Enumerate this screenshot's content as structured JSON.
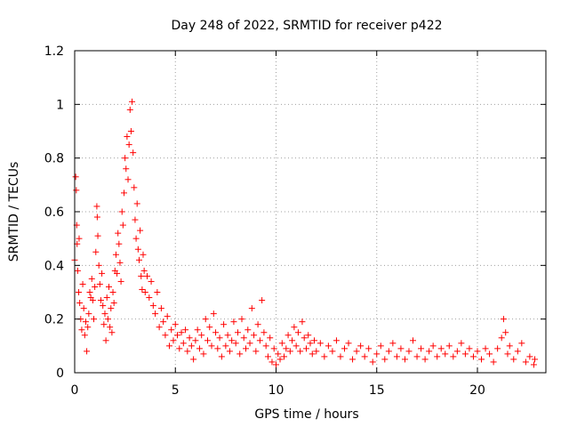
{
  "chart_data": {
    "type": "scatter",
    "title": "Day 248 of 2022, SRMTID for receiver p422",
    "xlabel": "GPS time / hours",
    "ylabel": "SRMTID / TECUs",
    "xlim": [
      0,
      23.4
    ],
    "ylim": [
      0,
      1.2
    ],
    "x_ticks": [
      0,
      5,
      10,
      15,
      20
    ],
    "x_tick_labels": [
      "0",
      "5",
      "10",
      "15",
      "20"
    ],
    "y_ticks": [
      0,
      0.2,
      0.4,
      0.6,
      0.8,
      1.0,
      1.2
    ],
    "y_tick_labels": [
      "0",
      "0.2",
      "0.4",
      "0.6",
      "0.8",
      "1",
      "1.2"
    ],
    "grid": true,
    "marker": "plus",
    "series": [
      {
        "name": "p422",
        "color": "#ff0000",
        "points": [
          [
            0.0,
            0.42
          ],
          [
            0.05,
            0.73
          ],
          [
            0.08,
            0.68
          ],
          [
            0.1,
            0.55
          ],
          [
            0.12,
            0.48
          ],
          [
            0.15,
            0.38
          ],
          [
            0.2,
            0.3
          ],
          [
            0.22,
            0.5
          ],
          [
            0.25,
            0.26
          ],
          [
            0.3,
            0.2
          ],
          [
            0.35,
            0.16
          ],
          [
            0.4,
            0.33
          ],
          [
            0.45,
            0.24
          ],
          [
            0.5,
            0.14
          ],
          [
            0.55,
            0.19
          ],
          [
            0.6,
            0.08
          ],
          [
            0.65,
            0.17
          ],
          [
            0.7,
            0.22
          ],
          [
            0.75,
            0.3
          ],
          [
            0.8,
            0.28
          ],
          [
            0.85,
            0.35
          ],
          [
            0.9,
            0.27
          ],
          [
            0.95,
            0.2
          ],
          [
            1.0,
            0.32
          ],
          [
            1.05,
            0.45
          ],
          [
            1.1,
            0.62
          ],
          [
            1.12,
            0.58
          ],
          [
            1.15,
            0.51
          ],
          [
            1.2,
            0.4
          ],
          [
            1.25,
            0.33
          ],
          [
            1.3,
            0.27
          ],
          [
            1.35,
            0.37
          ],
          [
            1.4,
            0.25
          ],
          [
            1.45,
            0.18
          ],
          [
            1.5,
            0.22
          ],
          [
            1.55,
            0.12
          ],
          [
            1.6,
            0.28
          ],
          [
            1.65,
            0.2
          ],
          [
            1.7,
            0.32
          ],
          [
            1.75,
            0.17
          ],
          [
            1.8,
            0.24
          ],
          [
            1.85,
            0.15
          ],
          [
            1.9,
            0.3
          ],
          [
            1.95,
            0.26
          ],
          [
            2.0,
            0.38
          ],
          [
            2.05,
            0.44
          ],
          [
            2.1,
            0.37
          ],
          [
            2.15,
            0.52
          ],
          [
            2.2,
            0.48
          ],
          [
            2.25,
            0.41
          ],
          [
            2.3,
            0.34
          ],
          [
            2.35,
            0.6
          ],
          [
            2.4,
            0.55
          ],
          [
            2.45,
            0.67
          ],
          [
            2.5,
            0.8
          ],
          [
            2.55,
            0.76
          ],
          [
            2.6,
            0.88
          ],
          [
            2.65,
            0.72
          ],
          [
            2.7,
            0.85
          ],
          [
            2.75,
            0.98
          ],
          [
            2.8,
            0.9
          ],
          [
            2.85,
            1.01
          ],
          [
            2.9,
            0.82
          ],
          [
            2.95,
            0.69
          ],
          [
            3.0,
            0.57
          ],
          [
            3.05,
            0.5
          ],
          [
            3.1,
            0.63
          ],
          [
            3.15,
            0.46
          ],
          [
            3.2,
            0.42
          ],
          [
            3.25,
            0.53
          ],
          [
            3.3,
            0.36
          ],
          [
            3.35,
            0.31
          ],
          [
            3.4,
            0.44
          ],
          [
            3.45,
            0.38
          ],
          [
            3.5,
            0.3
          ],
          [
            3.6,
            0.36
          ],
          [
            3.7,
            0.28
          ],
          [
            3.8,
            0.34
          ],
          [
            3.9,
            0.25
          ],
          [
            4.0,
            0.22
          ],
          [
            4.1,
            0.3
          ],
          [
            4.2,
            0.17
          ],
          [
            4.3,
            0.24
          ],
          [
            4.4,
            0.19
          ],
          [
            4.5,
            0.14
          ],
          [
            4.6,
            0.21
          ],
          [
            4.7,
            0.1
          ],
          [
            4.8,
            0.16
          ],
          [
            4.9,
            0.12
          ],
          [
            5.0,
            0.18
          ],
          [
            5.1,
            0.14
          ],
          [
            5.2,
            0.09
          ],
          [
            5.3,
            0.15
          ],
          [
            5.4,
            0.11
          ],
          [
            5.5,
            0.16
          ],
          [
            5.6,
            0.08
          ],
          [
            5.7,
            0.13
          ],
          [
            5.8,
            0.1
          ],
          [
            5.9,
            0.05
          ],
          [
            6.0,
            0.12
          ],
          [
            6.1,
            0.16
          ],
          [
            6.2,
            0.09
          ],
          [
            6.3,
            0.14
          ],
          [
            6.4,
            0.07
          ],
          [
            6.5,
            0.2
          ],
          [
            6.6,
            0.12
          ],
          [
            6.7,
            0.17
          ],
          [
            6.8,
            0.1
          ],
          [
            6.9,
            0.22
          ],
          [
            7.0,
            0.15
          ],
          [
            7.1,
            0.09
          ],
          [
            7.2,
            0.13
          ],
          [
            7.3,
            0.06
          ],
          [
            7.4,
            0.18
          ],
          [
            7.5,
            0.1
          ],
          [
            7.6,
            0.14
          ],
          [
            7.7,
            0.08
          ],
          [
            7.8,
            0.12
          ],
          [
            7.9,
            0.19
          ],
          [
            8.0,
            0.11
          ],
          [
            8.1,
            0.15
          ],
          [
            8.2,
            0.07
          ],
          [
            8.3,
            0.2
          ],
          [
            8.4,
            0.13
          ],
          [
            8.5,
            0.09
          ],
          [
            8.6,
            0.16
          ],
          [
            8.7,
            0.11
          ],
          [
            8.8,
            0.24
          ],
          [
            8.9,
            0.14
          ],
          [
            9.0,
            0.08
          ],
          [
            9.1,
            0.18
          ],
          [
            9.2,
            0.12
          ],
          [
            9.3,
            0.27
          ],
          [
            9.4,
            0.15
          ],
          [
            9.5,
            0.1
          ],
          [
            9.6,
            0.06
          ],
          [
            9.7,
            0.13
          ],
          [
            9.8,
            0.04
          ],
          [
            9.9,
            0.09
          ],
          [
            10.0,
            0.03
          ],
          [
            10.1,
            0.07
          ],
          [
            10.2,
            0.05
          ],
          [
            10.3,
            0.11
          ],
          [
            10.4,
            0.06
          ],
          [
            10.5,
            0.09
          ],
          [
            10.6,
            0.14
          ],
          [
            10.7,
            0.08
          ],
          [
            10.8,
            0.12
          ],
          [
            10.9,
            0.17
          ],
          [
            11.0,
            0.1
          ],
          [
            11.1,
            0.15
          ],
          [
            11.2,
            0.08
          ],
          [
            11.3,
            0.19
          ],
          [
            11.4,
            0.13
          ],
          [
            11.5,
            0.09
          ],
          [
            11.6,
            0.14
          ],
          [
            11.7,
            0.11
          ],
          [
            11.8,
            0.07
          ],
          [
            11.9,
            0.12
          ],
          [
            12.0,
            0.08
          ],
          [
            12.2,
            0.11
          ],
          [
            12.4,
            0.06
          ],
          [
            12.6,
            0.1
          ],
          [
            12.8,
            0.08
          ],
          [
            13.0,
            0.12
          ],
          [
            13.2,
            0.06
          ],
          [
            13.4,
            0.09
          ],
          [
            13.6,
            0.11
          ],
          [
            13.8,
            0.05
          ],
          [
            14.0,
            0.08
          ],
          [
            14.2,
            0.1
          ],
          [
            14.4,
            0.06
          ],
          [
            14.6,
            0.09
          ],
          [
            14.8,
            0.04
          ],
          [
            15.0,
            0.07
          ],
          [
            15.2,
            0.1
          ],
          [
            15.4,
            0.05
          ],
          [
            15.6,
            0.08
          ],
          [
            15.8,
            0.11
          ],
          [
            16.0,
            0.06
          ],
          [
            16.2,
            0.09
          ],
          [
            16.4,
            0.05
          ],
          [
            16.6,
            0.08
          ],
          [
            16.8,
            0.12
          ],
          [
            17.0,
            0.06
          ],
          [
            17.2,
            0.09
          ],
          [
            17.4,
            0.05
          ],
          [
            17.6,
            0.08
          ],
          [
            17.8,
            0.1
          ],
          [
            18.0,
            0.06
          ],
          [
            18.2,
            0.09
          ],
          [
            18.4,
            0.07
          ],
          [
            18.6,
            0.1
          ],
          [
            18.8,
            0.06
          ],
          [
            19.0,
            0.08
          ],
          [
            19.2,
            0.11
          ],
          [
            19.4,
            0.07
          ],
          [
            19.6,
            0.09
          ],
          [
            19.8,
            0.06
          ],
          [
            20.0,
            0.08
          ],
          [
            20.2,
            0.05
          ],
          [
            20.4,
            0.09
          ],
          [
            20.6,
            0.07
          ],
          [
            20.8,
            0.04
          ],
          [
            21.0,
            0.09
          ],
          [
            21.2,
            0.13
          ],
          [
            21.3,
            0.2
          ],
          [
            21.4,
            0.15
          ],
          [
            21.5,
            0.07
          ],
          [
            21.6,
            0.1
          ],
          [
            21.8,
            0.05
          ],
          [
            22.0,
            0.08
          ],
          [
            22.2,
            0.11
          ],
          [
            22.4,
            0.04
          ],
          [
            22.6,
            0.06
          ],
          [
            22.8,
            0.03
          ],
          [
            22.85,
            0.05
          ]
        ]
      }
    ]
  }
}
